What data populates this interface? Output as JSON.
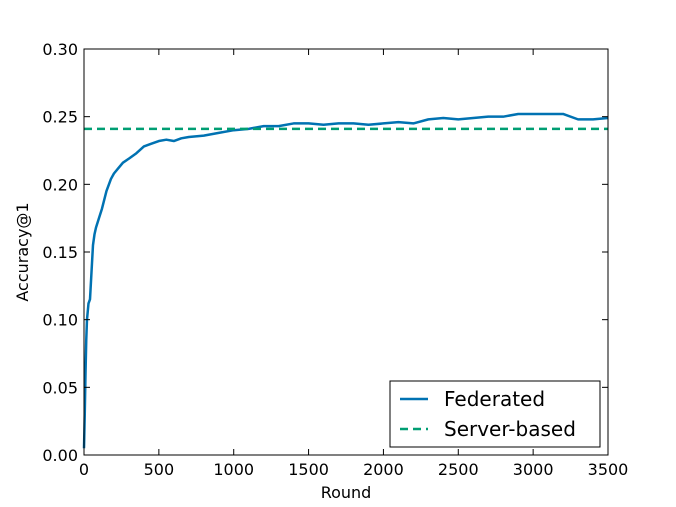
{
  "chart_data": {
    "type": "line",
    "title": "",
    "xlabel": "Round",
    "ylabel": "Accuracy@1",
    "xlim": [
      0,
      3500
    ],
    "ylim": [
      0.0,
      0.3
    ],
    "xticks": [
      0,
      500,
      1000,
      1500,
      2000,
      2500,
      3000,
      3500
    ],
    "xtick_labels": [
      "0",
      "500",
      "1000",
      "1500",
      "2000",
      "2500",
      "3000",
      "3500"
    ],
    "yticks": [
      0.0,
      0.05,
      0.1,
      0.15,
      0.2,
      0.25,
      0.3
    ],
    "ytick_labels": [
      "0.00",
      "0.05",
      "0.10",
      "0.15",
      "0.20",
      "0.25",
      "0.30"
    ],
    "grid": false,
    "legend_placement": "lower-right",
    "series": [
      {
        "name": "Federated",
        "style": "solid",
        "color": "#0072b2",
        "x": [
          0,
          5,
          10,
          15,
          20,
          30,
          40,
          50,
          60,
          70,
          80,
          100,
          120,
          150,
          180,
          200,
          230,
          260,
          300,
          350,
          400,
          450,
          500,
          550,
          600,
          650,
          700,
          800,
          900,
          1000,
          1100,
          1200,
          1300,
          1400,
          1500,
          1600,
          1700,
          1800,
          1900,
          2000,
          2100,
          2200,
          2300,
          2400,
          2500,
          2600,
          2700,
          2800,
          2900,
          3000,
          3100,
          3200,
          3300,
          3400,
          3500
        ],
        "y": [
          0.005,
          0.03,
          0.06,
          0.085,
          0.1,
          0.112,
          0.115,
          0.135,
          0.155,
          0.163,
          0.168,
          0.175,
          0.182,
          0.195,
          0.204,
          0.208,
          0.212,
          0.216,
          0.219,
          0.223,
          0.228,
          0.23,
          0.232,
          0.233,
          0.232,
          0.234,
          0.235,
          0.236,
          0.238,
          0.24,
          0.241,
          0.243,
          0.243,
          0.245,
          0.245,
          0.244,
          0.245,
          0.245,
          0.244,
          0.245,
          0.246,
          0.245,
          0.248,
          0.249,
          0.248,
          0.249,
          0.25,
          0.25,
          0.252,
          0.252,
          0.252,
          0.252,
          0.248,
          0.248,
          0.249
        ]
      },
      {
        "name": "Server-based",
        "style": "dashed",
        "color": "#009e73",
        "x": [
          0,
          3500
        ],
        "y": [
          0.241,
          0.241
        ]
      }
    ]
  }
}
